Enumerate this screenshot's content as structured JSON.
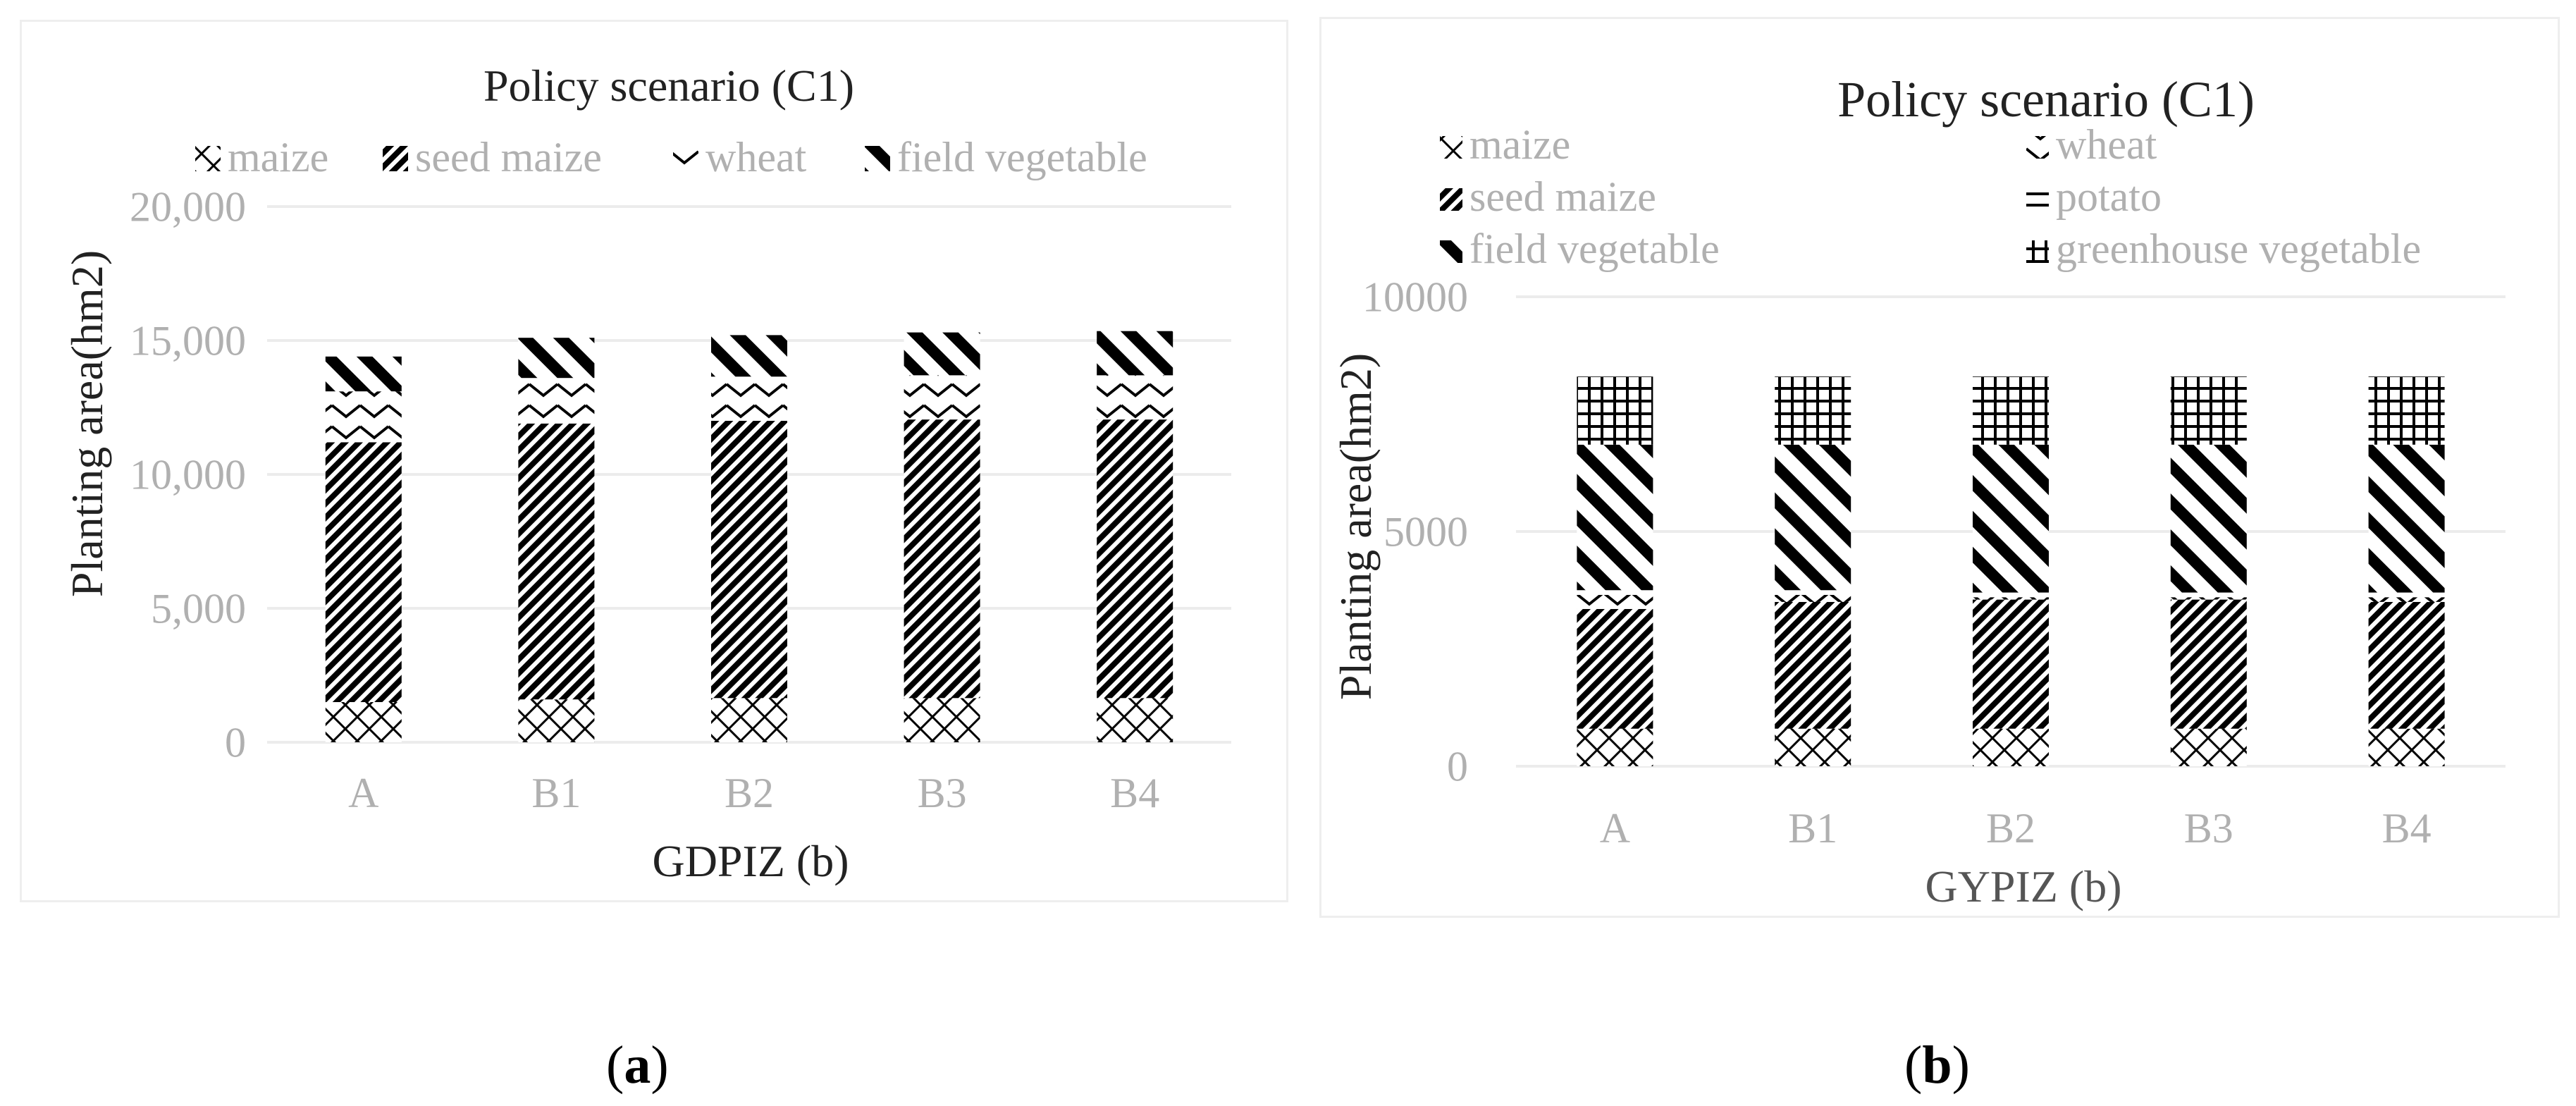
{
  "panels": [
    {
      "chart_data": {
        "type": "bar",
        "stacked": true,
        "title": "Policy scenario (C1)",
        "xlabel": "GDPIZ (b)",
        "ylabel": "Planting area(hm2)",
        "categories": [
          "A",
          "B1",
          "B2",
          "B3",
          "B4"
        ],
        "ylim": [
          0,
          20000
        ],
        "yticks": [
          0,
          5000,
          10000,
          15000,
          20000
        ],
        "ytick_labels": [
          "0",
          "5,000",
          "10,000",
          "15,000",
          "20,000"
        ],
        "legend_position": "top",
        "series": [
          {
            "name": "maize",
            "pattern": "xcross",
            "values": [
              1500,
              1600,
              1650,
              1650,
              1650
            ]
          },
          {
            "name": "seed maize",
            "pattern": "diag-fine",
            "values": [
              9700,
              10300,
              10350,
              10400,
              10400
            ]
          },
          {
            "name": "wheat",
            "pattern": "chevron",
            "values": [
              1900,
              1700,
              1650,
              1650,
              1650
            ]
          },
          {
            "name": "field vegetable",
            "pattern": "diag-thick",
            "values": [
              1300,
              1500,
              1550,
              1600,
              1650
            ]
          }
        ],
        "legend_order": [
          0,
          1,
          2,
          3
        ]
      },
      "sublabel": "a"
    },
    {
      "chart_data": {
        "type": "bar",
        "stacked": true,
        "title": "Policy scenario (C1)",
        "xlabel": "GYPIZ (b)",
        "ylabel": "Planting area(hm2)",
        "categories": [
          "A",
          "B1",
          "B2",
          "B3",
          "B4"
        ],
        "ylim": [
          0,
          10000
        ],
        "yticks": [
          0,
          5000,
          10000
        ],
        "ytick_labels": [
          "0",
          "5000",
          "10000"
        ],
        "legend_position": "top",
        "series": [
          {
            "name": "maize",
            "pattern": "xcross",
            "values": [
              800,
              800,
              800,
              800,
              800
            ]
          },
          {
            "name": "seed maize",
            "pattern": "diag-fine",
            "values": [
              2550,
              2700,
              2750,
              2750,
              2700
            ]
          },
          {
            "name": "wheat",
            "pattern": "chevron",
            "values": [
              300,
              150,
              50,
              50,
              100
            ]
          },
          {
            "name": "potato",
            "pattern": "hline",
            "values": [
              100,
              100,
              100,
              100,
              100
            ]
          },
          {
            "name": "field vegetable",
            "pattern": "diag-thick",
            "values": [
              3100,
              3100,
              3150,
              3150,
              3150
            ]
          },
          {
            "name": "greenhouse vegetable",
            "pattern": "grid",
            "values": [
              1450,
              1450,
              1450,
              1450,
              1450
            ]
          }
        ],
        "legend_order": [
          0,
          2,
          1,
          3,
          4,
          5
        ]
      },
      "sublabel": "b"
    }
  ]
}
